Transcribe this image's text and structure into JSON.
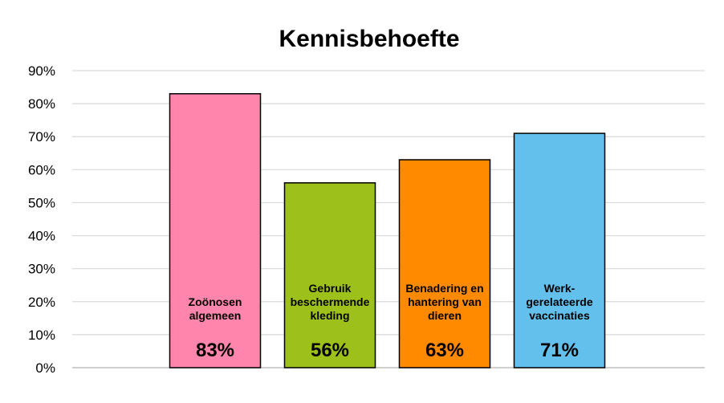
{
  "chart_data": {
    "type": "bar",
    "title": "Kennisbehoefte",
    "xlabel": "",
    "ylabel": "",
    "ylim": [
      0,
      0.9
    ],
    "yticks": [
      0,
      0.1,
      0.2,
      0.3,
      0.4,
      0.5,
      0.6,
      0.7,
      0.8,
      0.9
    ],
    "ytick_labels": [
      "0%",
      "10%",
      "20%",
      "30%",
      "40%",
      "50%",
      "60%",
      "70%",
      "80%",
      "90%"
    ],
    "grid": true,
    "legend": "none",
    "categories": [
      [
        "Zoönosen",
        "algemeen"
      ],
      [
        "Gebruik",
        "beschermende",
        "kleding"
      ],
      [
        "Benadering en",
        "hantering van",
        "dieren"
      ],
      [
        "Werk-",
        "gerelateerde",
        "vaccinaties"
      ]
    ],
    "values": [
      0.83,
      0.56,
      0.63,
      0.71
    ],
    "value_labels": [
      "83%",
      "56%",
      "63%",
      "71%"
    ],
    "colors": [
      "#FF85AD",
      "#9DC11A",
      "#FF8A00",
      "#63C0EC"
    ],
    "bar_edge_color": "#000000",
    "grid_color": "#D9D9D9"
  }
}
